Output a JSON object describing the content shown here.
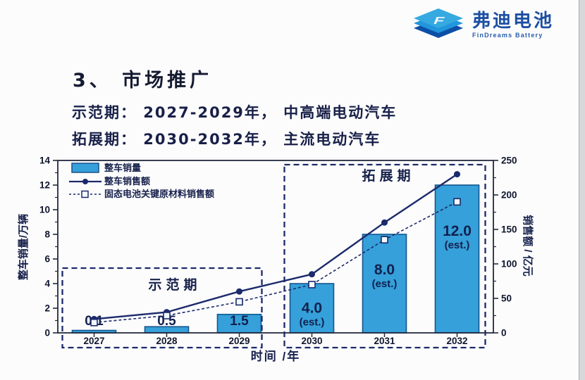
{
  "logo": {
    "text_cn": "弗迪电池",
    "text_en": "FinDreams Battery",
    "color": "#1d4fa3"
  },
  "heading": {
    "title": "3、 市场推广"
  },
  "intro": {
    "line1": "示范期： 2027-2029年， 中高端电动汽车",
    "line2": "拓展期： 2030-2032年， 主流电动汽车"
  },
  "chart_data": {
    "type": "bar",
    "subtype": "bar+line combo, dual axis",
    "categories": [
      "2027",
      "2028",
      "2029",
      "2030",
      "2031",
      "2032"
    ],
    "xlabel": "时间 /年",
    "left_axis": {
      "label": "整车销量/万辆",
      "range": [
        0,
        14
      ],
      "major_ticks": [
        0,
        2,
        4,
        6,
        8,
        10,
        12,
        14
      ],
      "minor_step": 1
    },
    "right_axis": {
      "label": "销售额 / 亿元",
      "range": [
        0,
        250
      ],
      "major_ticks": [
        0,
        50,
        100,
        150,
        200,
        250
      ],
      "minor_step": 25
    },
    "bar_series": {
      "name": "整车销量",
      "axis": "left",
      "color": "#35a0d9",
      "border_color": "#15568f",
      "values": [
        0.1,
        0.5,
        1.5,
        4.0,
        8.0,
        12.0
      ],
      "value_labels": [
        {
          "main": "0.1"
        },
        {
          "main": "0.5"
        },
        {
          "main": "1.5"
        },
        {
          "main": "4.0",
          "sub": "(est.)"
        },
        {
          "main": "8.0",
          "sub": "(est.)"
        },
        {
          "main": "12.0",
          "sub": "(est.)"
        }
      ]
    },
    "line_series": [
      {
        "name": "整车销售额",
        "axis": "right",
        "style": "solid",
        "marker": "filled-circle",
        "color": "#1b2a6b",
        "values": [
          20,
          30,
          60,
          85,
          160,
          230
        ]
      },
      {
        "name": "固态电池关键原材料销售额",
        "axis": "right",
        "style": "dashed",
        "marker": "open-square",
        "color": "#1b2a6b",
        "values": [
          15,
          25,
          45,
          70,
          135,
          190
        ]
      }
    ],
    "period_boxes": [
      {
        "label": "示范期",
        "from": "2027",
        "to": "2029"
      },
      {
        "label": "拓展期",
        "from": "2030",
        "to": "2032"
      }
    ],
    "legend_position": "top-left",
    "grid": false
  }
}
